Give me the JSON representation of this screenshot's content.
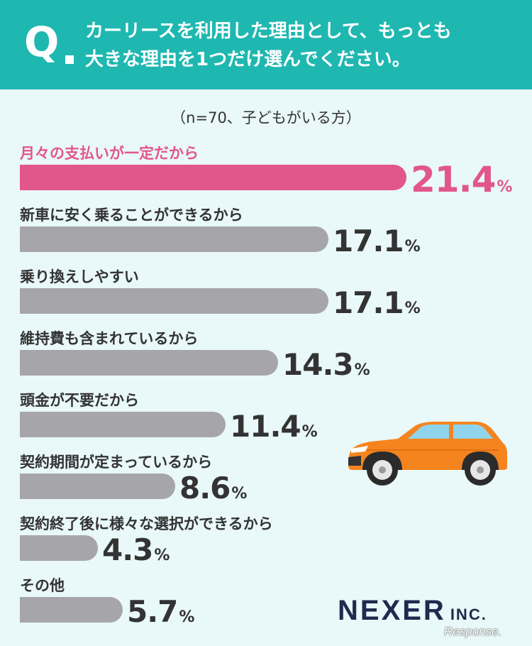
{
  "header": {
    "q_mark": "Q",
    "question_line1": "カーリースを利用した理由として、もっとも",
    "question_line2": "大きな理由を1つだけ選んでください。"
  },
  "subtitle": "（n=70、子どもがいる方）",
  "colors": {
    "teal": "#1fb8b0",
    "highlight": "#e2568e",
    "bar": "#a6a6aa",
    "background": "#e9f8f8",
    "car": "#f5841f"
  },
  "chart_data": {
    "type": "bar",
    "orientation": "horizontal",
    "categories": [
      "月々の支払いが一定だから",
      "新車に安く乗ることができるから",
      "乗り換えしやすい",
      "維持費も含まれているから",
      "頭金が不要だから",
      "契約期間が定まっているから",
      "契約終了後に様々な選択ができるから",
      "その他"
    ],
    "values": [
      21.4,
      17.1,
      17.1,
      14.3,
      11.4,
      8.6,
      4.3,
      5.7
    ],
    "value_labels": [
      "21.4",
      "17.1",
      "17.1",
      "14.3",
      "11.4",
      "8.6",
      "4.3",
      "5.7"
    ],
    "unit": "%",
    "highlight_index": 0
  },
  "car_icon": "orange-suv-icon",
  "logo": {
    "main": "NEXER",
    "suffix": "INC."
  },
  "watermark": "Response."
}
